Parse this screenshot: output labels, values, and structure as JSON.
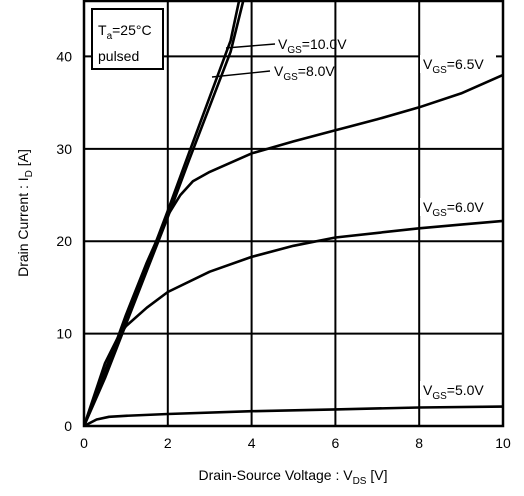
{
  "chart_data": {
    "type": "line",
    "xlabel": {
      "main": "Drain-Source Voltage : V",
      "sub": "DS",
      "unit": " [V]"
    },
    "ylabel": {
      "main": "Drain Current : I",
      "sub": "D",
      "unit": " [A]"
    },
    "xlim": [
      0,
      10
    ],
    "ylim": [
      0,
      46
    ],
    "xticks": [
      0,
      2,
      4,
      6,
      8,
      10
    ],
    "yticks": [
      0,
      10,
      20,
      30,
      40
    ],
    "grid": true,
    "conditions": {
      "line1_pre": "T",
      "line1_sub": "a",
      "line1_post": "=25°C",
      "line2": "pulsed"
    },
    "series": [
      {
        "name": "V_GS=10.0V",
        "label": {
          "pre": "V",
          "sub": "GS",
          "post": "=10.0V"
        },
        "x": [
          0,
          0.5,
          1.0,
          1.5,
          2.0,
          2.5,
          3.0,
          3.5,
          3.7
        ],
        "y": [
          0,
          5.5,
          11.5,
          17.3,
          23.3,
          29.5,
          35.6,
          41.7,
          46
        ]
      },
      {
        "name": "V_GS=8.0V",
        "label": {
          "pre": "V",
          "sub": "GS",
          "post": "=8.0V"
        },
        "x": [
          0,
          0.5,
          1.0,
          1.5,
          2.0,
          2.5,
          3.0,
          3.5,
          3.8
        ],
        "y": [
          0,
          5.2,
          11.0,
          16.8,
          22.6,
          28.7,
          34.6,
          40.5,
          46
        ]
      },
      {
        "name": "V_GS=6.5V",
        "label": {
          "pre": "V",
          "sub": "GS",
          "post": "=6.5V"
        },
        "x": [
          0,
          0.5,
          0.8,
          1.0,
          1.5,
          2.0,
          2.3,
          2.6,
          3.0,
          4.0,
          5.0,
          6.0,
          7.0,
          8.0,
          9.0,
          10.0
        ],
        "y": [
          0,
          6.0,
          9.5,
          12.0,
          17.7,
          22.8,
          25.0,
          26.5,
          27.5,
          29.5,
          30.8,
          32.0,
          33.2,
          34.5,
          36.0,
          38.0
        ]
      },
      {
        "name": "V_GS=6.0V",
        "label": {
          "pre": "V",
          "sub": "GS",
          "post": "=6.0V"
        },
        "x": [
          0,
          0.5,
          0.8,
          1.0,
          1.5,
          2.0,
          3.0,
          4.0,
          5.0,
          6.0,
          7.0,
          8.0,
          9.0,
          10.0
        ],
        "y": [
          0,
          6.8,
          9.5,
          10.8,
          12.8,
          14.5,
          16.7,
          18.3,
          19.5,
          20.4,
          20.9,
          21.4,
          21.8,
          22.2
        ]
      },
      {
        "name": "V_GS=5.0V",
        "label": {
          "pre": "V",
          "sub": "GS",
          "post": "=5.0V"
        },
        "x": [
          0,
          0.3,
          0.6,
          1.0,
          2.0,
          4.0,
          6.0,
          8.0,
          10.0
        ],
        "y": [
          0,
          0.7,
          1.0,
          1.1,
          1.3,
          1.6,
          1.8,
          2.0,
          2.1
        ]
      }
    ]
  }
}
